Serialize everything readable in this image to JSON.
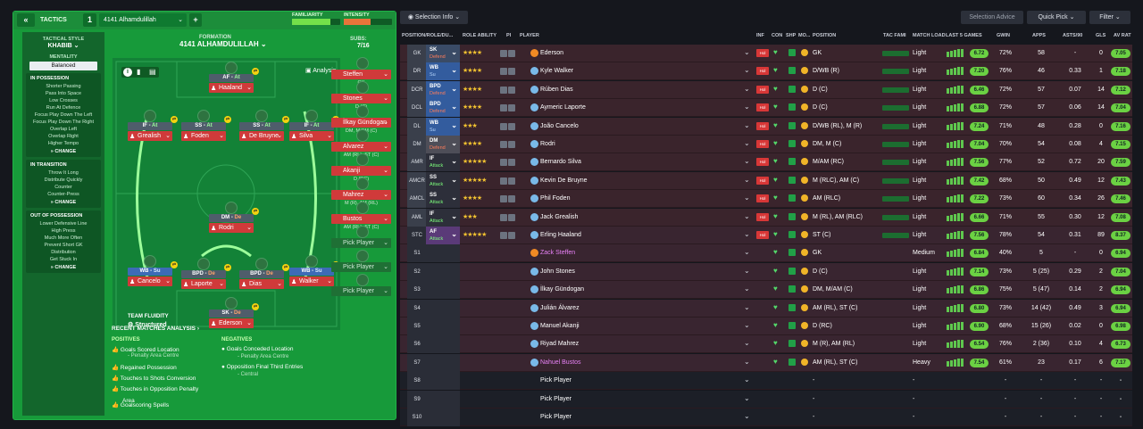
{
  "topbar": {
    "back": "«",
    "title": "TACTICS",
    "slot": "1",
    "tactic_name": "4141 Alhamdulillah",
    "plus": "+",
    "familiarity_label": "FAMILIARITY",
    "intensity_label": "INTENSITY"
  },
  "tac": {
    "style_label": "TACTICAL STYLE",
    "style": "KHABIB",
    "mentality_label": "MENTALITY",
    "mentality": "Balanced",
    "in_possession": {
      "title": "IN POSSESSION",
      "items": [
        "Shorter Passing",
        "Pass Into Space",
        "Low Crosses",
        "Run At Defence",
        "Focus Play Down The Left",
        "Focus Play Down The Right",
        "Overlap Left",
        "Overlap Right",
        "Higher Tempo"
      ],
      "change": "CHANGE"
    },
    "in_transition": {
      "title": "IN TRANSITION",
      "items": [
        "Throw It Long",
        "Distribute Quickly",
        "Counter",
        "Counter-Press"
      ],
      "change": "CHANGE"
    },
    "out_possession": {
      "title": "OUT OF POSSESSION",
      "items": [
        "Lower Defensive Line",
        "High Press",
        "Much More Often",
        "Prevent Short GK",
        "Distribution",
        "Get Stuck In"
      ],
      "change": "CHANGE"
    }
  },
  "formation": {
    "label": "FORMATION",
    "name": "4141 ALHAMDULILLAH",
    "analysis": "Analysis",
    "subs_label": "SUBS:",
    "subs_val": "7/16",
    "fluidity_label": "TEAM FLUIDITY",
    "fluidity": "Structured",
    "players": [
      {
        "role": "AF",
        "duty": "At",
        "name": "Haaland"
      },
      {
        "role": "IF",
        "duty": "At",
        "name": "Grealish"
      },
      {
        "role": "SS",
        "duty": "At",
        "name": "Foden"
      },
      {
        "role": "SS",
        "duty": "At",
        "name": "De Bruyne"
      },
      {
        "role": "IF",
        "duty": "At",
        "name": "Silva"
      },
      {
        "role": "DM",
        "duty": "De",
        "name": "Rodri"
      },
      {
        "role": "WB",
        "duty": "Su",
        "name": "Cancelo"
      },
      {
        "role": "BPD",
        "duty": "De",
        "name": "Laporte"
      },
      {
        "role": "BPD",
        "duty": "De",
        "name": "Dias"
      },
      {
        "role": "WB",
        "duty": "Su",
        "name": "Walker"
      },
      {
        "role": "SK",
        "duty": "De",
        "name": "Ederson"
      }
    ],
    "subs": [
      {
        "name": "Steffen",
        "pos": "GK"
      },
      {
        "name": "Stones",
        "pos": "D (C)"
      },
      {
        "name": "İlkay Gündogan",
        "pos": "DM, M/AM (C)"
      },
      {
        "name": "Alvarez",
        "pos": "AM (RL), ST (C)"
      },
      {
        "name": "Akanji",
        "pos": "D (RC)"
      },
      {
        "name": "Mahrez",
        "pos": "M (R), AM (RL)"
      },
      {
        "name": "Bustos",
        "pos": "AM (RL), ST (C)"
      },
      {
        "name": "Pick Player",
        "pos": ""
      },
      {
        "name": "Pick Player",
        "pos": ""
      },
      {
        "name": "Pick Player",
        "pos": ""
      }
    ]
  },
  "recent": {
    "title": "RECENT MATCHES ANALYSIS ›",
    "pos_h": "POSITIVES",
    "neg_h": "NEGATIVES",
    "positives": [
      "Goals Scored Location",
      "Regained Possession",
      "Touches to Shots Conversion",
      "Touches in Opposition Penalty",
      "Goalscoring Spells"
    ],
    "pos_sub": "- Penalty Area Centre",
    "pos_extra": "Area",
    "negatives": [
      "Goals Conceded Location",
      "Opposition Final Third Entries"
    ],
    "neg_subs": [
      "- Penalty Area Centre",
      "- Central"
    ]
  },
  "toolbar": {
    "selection": "Selection Info",
    "advice": "Selection Advice",
    "quick": "Quick Pick",
    "filter": "Filter"
  },
  "headers": {
    "pos": "POSITION/ROLE/DU...",
    "role_ability": "ROLE ABILITY",
    "pi": "PI",
    "player": "PLAYER",
    "inf": "INF",
    "con": "CON",
    "shp": "SHP",
    "mo": "MO...",
    "position": "POSITION",
    "tac": "TAC FAMI",
    "load": "MATCH LOAD",
    "last5": "LAST 5 GAMES",
    "gwin": "GWIN",
    "apps": "APPS",
    "asts": "ASTS/90",
    "gls": "GLS",
    "avrat": "AV RAT"
  },
  "rows": [
    {
      "pos": "GK",
      "role": "SK",
      "duty": "Defend",
      "stars": "★★★★",
      "name": "Ederson",
      "position": "GK",
      "load": "Light",
      "rating": "6.72",
      "gwin": "72%",
      "apps": "58",
      "asts": "-",
      "gls": "0",
      "avr": "7.05"
    },
    {
      "pos": "DR",
      "role": "WB",
      "duty": "Su",
      "stars": "★★★★",
      "name": "Kyle Walker",
      "position": "D/WB (R)",
      "load": "Light",
      "rating": "7.20",
      "gwin": "76%",
      "apps": "46",
      "asts": "0.33",
      "gls": "1",
      "avr": "7.18"
    },
    {
      "pos": "DCR",
      "role": "BPD",
      "duty": "Defend",
      "stars": "★★★★",
      "name": "Rúben Dias",
      "position": "D (C)",
      "load": "Light",
      "rating": "6.46",
      "gwin": "72%",
      "apps": "57",
      "asts": "0.07",
      "gls": "14",
      "avr": "7.12"
    },
    {
      "pos": "DCL",
      "role": "BPD",
      "duty": "Defend",
      "stars": "★★★★",
      "name": "Aymeric Laporte",
      "position": "D (C)",
      "load": "Light",
      "rating": "6.88",
      "gwin": "72%",
      "apps": "57",
      "asts": "0.06",
      "gls": "14",
      "avr": "7.04"
    },
    {
      "pos": "DL",
      "role": "WB",
      "duty": "Su",
      "stars": "★★★",
      "name": "João Cancelo",
      "position": "D/WB (RL), M (R)",
      "load": "Light",
      "rating": "7.24",
      "gwin": "71%",
      "apps": "48",
      "asts": "0.28",
      "gls": "0",
      "avr": "7.16"
    },
    {
      "pos": "DM",
      "role": "DM",
      "duty": "Defend",
      "stars": "★★★★",
      "name": "Rodri",
      "position": "DM, M (C)",
      "load": "Light",
      "rating": "7.04",
      "gwin": "70%",
      "apps": "54",
      "asts": "0.08",
      "gls": "4",
      "avr": "7.15"
    },
    {
      "pos": "AMR",
      "role": "IF",
      "duty": "Attack",
      "stars": "★★★★★",
      "name": "Bernardo Silva",
      "position": "M/AM (RC)",
      "load": "Light",
      "rating": "7.56",
      "gwin": "77%",
      "apps": "52",
      "asts": "0.72",
      "gls": "20",
      "avr": "7.59"
    },
    {
      "pos": "AMCR",
      "role": "SS",
      "duty": "Attack",
      "stars": "★★★★★",
      "name": "Kevin De Bruyne",
      "position": "M (RLC), AM (C)",
      "load": "Light",
      "rating": "7.42",
      "gwin": "68%",
      "apps": "50",
      "asts": "0.49",
      "gls": "12",
      "avr": "7.43"
    },
    {
      "pos": "AMCL",
      "role": "SS",
      "duty": "Attack",
      "stars": "★★★★",
      "name": "Phil Foden",
      "position": "AM (RLC)",
      "load": "Light",
      "rating": "7.22",
      "gwin": "73%",
      "apps": "60",
      "asts": "0.34",
      "gls": "26",
      "avr": "7.46"
    },
    {
      "pos": "AML",
      "role": "IF",
      "duty": "Attack",
      "stars": "★★★",
      "name": "Jack Grealish",
      "position": "M (RL), AM (RLC)",
      "load": "Light",
      "rating": "6.66",
      "gwin": "71%",
      "apps": "55",
      "asts": "0.30",
      "gls": "12",
      "avr": "7.08"
    },
    {
      "pos": "STC",
      "role": "AF",
      "duty": "Attack",
      "stars": "★★★★★",
      "name": "Erling Haaland",
      "position": "ST (C)",
      "load": "Light",
      "rating": "7.56",
      "gwin": "78%",
      "apps": "54",
      "asts": "0.31",
      "gls": "89",
      "avr": "8.37"
    },
    {
      "pos": "S1",
      "role": "",
      "duty": "",
      "stars": "",
      "name": "Zack Steffen",
      "position": "GK",
      "load": "Medium",
      "rating": "6.84",
      "gwin": "40%",
      "apps": "5",
      "asts": "-",
      "gls": "0",
      "avr": "6.94"
    },
    {
      "pos": "S2",
      "role": "",
      "duty": "",
      "stars": "",
      "name": "John Stones",
      "position": "D (C)",
      "load": "Light",
      "rating": "7.14",
      "gwin": "73%",
      "apps": "5 (25)",
      "asts": "0.29",
      "gls": "2",
      "avr": "7.04"
    },
    {
      "pos": "S3",
      "role": "",
      "duty": "",
      "stars": "",
      "name": "İlkay Gündogan",
      "position": "DM, M/AM (C)",
      "load": "Light",
      "rating": "6.86",
      "gwin": "75%",
      "apps": "5 (47)",
      "asts": "0.14",
      "gls": "2",
      "avr": "6.94"
    },
    {
      "pos": "S4",
      "role": "",
      "duty": "",
      "stars": "",
      "name": "Julián Álvarez",
      "position": "AM (RL), ST (C)",
      "load": "Light",
      "rating": "6.80",
      "gwin": "73%",
      "apps": "14 (42)",
      "asts": "0.49",
      "gls": "3",
      "avr": "6.94"
    },
    {
      "pos": "S5",
      "role": "",
      "duty": "",
      "stars": "",
      "name": "Manuel Akanji",
      "position": "D (RC)",
      "load": "Light",
      "rating": "6.90",
      "gwin": "68%",
      "apps": "15 (26)",
      "asts": "0.02",
      "gls": "0",
      "avr": "6.98"
    },
    {
      "pos": "S6",
      "role": "",
      "duty": "",
      "stars": "",
      "name": "Riyad Mahrez",
      "position": "M (R), AM (RL)",
      "load": "Light",
      "rating": "6.54",
      "gwin": "76%",
      "apps": "2 (36)",
      "asts": "0.10",
      "gls": "4",
      "avr": "6.73"
    },
    {
      "pos": "S7",
      "role": "",
      "duty": "",
      "stars": "",
      "name": "Nahuel Bustos",
      "position": "AM (RL), ST (C)",
      "load": "Heavy",
      "rating": "7.54",
      "gwin": "61%",
      "apps": "23",
      "asts": "0.17",
      "gls": "6",
      "avr": "7.17"
    },
    {
      "pos": "S8",
      "role": "",
      "duty": "",
      "stars": "",
      "name": "Pick Player",
      "position": "-",
      "load": "-",
      "rating": "",
      "gwin": "-",
      "apps": "-",
      "asts": "-",
      "gls": "-",
      "avr": "-"
    },
    {
      "pos": "S9",
      "role": "",
      "duty": "",
      "stars": "",
      "name": "Pick Player",
      "position": "-",
      "load": "-",
      "rating": "",
      "gwin": "-",
      "apps": "-",
      "asts": "-",
      "gls": "-",
      "avr": "-"
    },
    {
      "pos": "S10",
      "role": "",
      "duty": "",
      "stars": "",
      "name": "Pick Player",
      "position": "-",
      "load": "-",
      "rating": "",
      "gwin": "-",
      "apps": "-",
      "asts": "-",
      "gls": "-",
      "avr": "-"
    }
  ],
  "colors": {
    "pitch": "#138237",
    "panel": "#179a3a",
    "name_red": "#d03a3a",
    "rating_green": "#6bd143",
    "bg": "#15171d"
  }
}
